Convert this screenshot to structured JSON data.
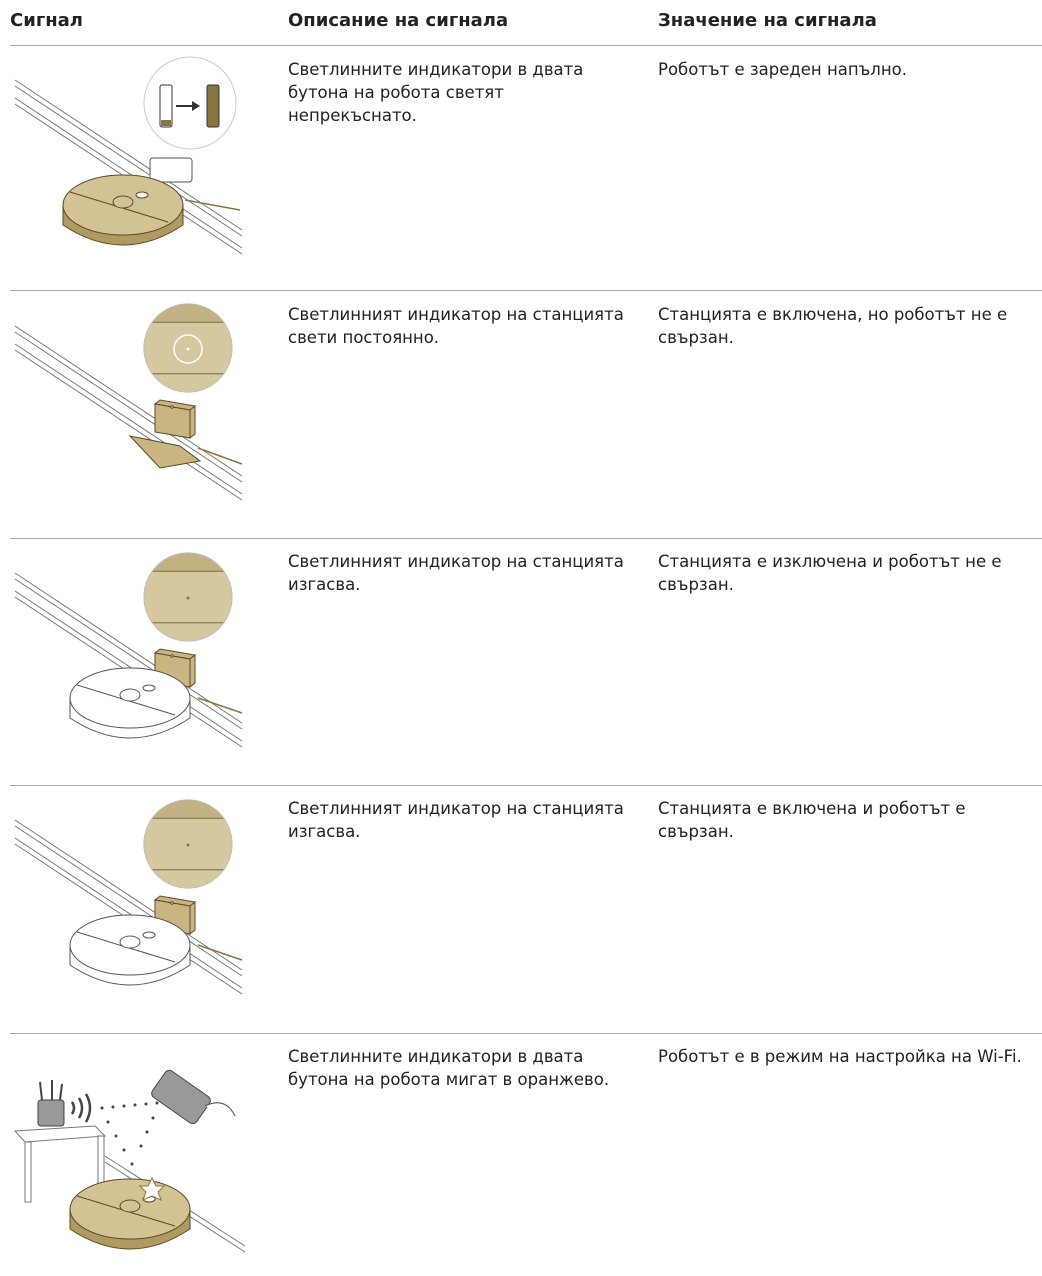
{
  "table": {
    "header": [
      "Сигнал",
      "Описание на сигнала",
      "Значение на сигнала"
    ],
    "rows": [
      {
        "description": "Светлинните индикатори в двата бутона на робота светят непрекъснато.",
        "meaning": "Роботът е зареден напълно."
      },
      {
        "description": "Светлинният индикатор на станцията свети постоянно.",
        "meaning": "Станцията е включена, но роботът не е свързан."
      },
      {
        "description": "Светлинният индикатор на станцията изгасва.",
        "meaning": "Станцията е изключена и роботът не е свързан."
      },
      {
        "description": "Светлинният индикатор на станцията изгасва.",
        "meaning": "Станцията е включена и роботът е свързан."
      },
      {
        "description": "Светлинните индикатори в двата бутона на робота мигат в оранжево.",
        "meaning": "Роботът е в режим на настройка на Wi-Fi."
      }
    ]
  }
}
